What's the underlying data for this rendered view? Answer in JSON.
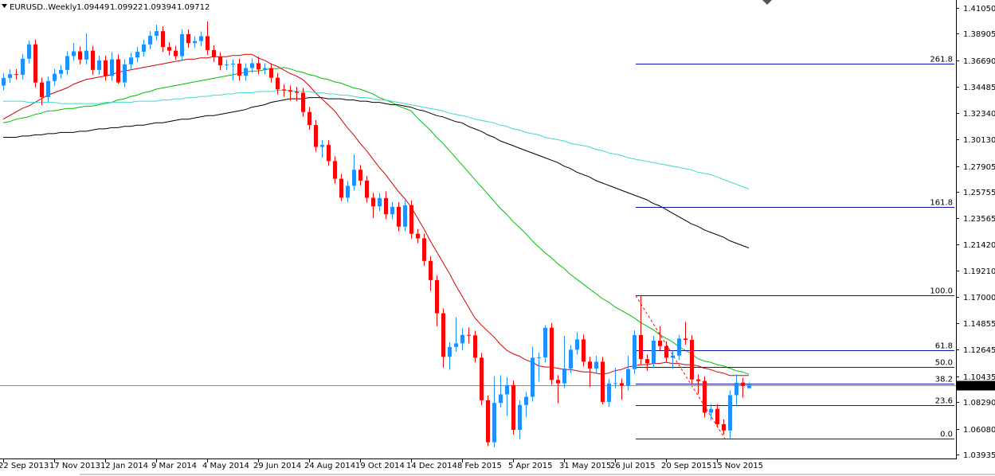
{
  "chart_data": {
    "type": "candlestick",
    "symbol": "EURUSD..Weekly",
    "categories": [
      "22 Sep 2013",
      null,
      null,
      null,
      null,
      null,
      null,
      null,
      "17 Nov 2013",
      null,
      null,
      null,
      null,
      null,
      null,
      null,
      "12 Jan 2014",
      null,
      null,
      null,
      null,
      null,
      null,
      null,
      "9 Mar 2014",
      null,
      null,
      null,
      null,
      null,
      null,
      null,
      "4 May 2014",
      null,
      null,
      null,
      null,
      null,
      null,
      null,
      "29 Jun 2014",
      null,
      null,
      null,
      null,
      null,
      null,
      null,
      "24 Aug 2014",
      null,
      null,
      null,
      null,
      null,
      null,
      null,
      "19 Oct 2014",
      null,
      null,
      null,
      null,
      null,
      null,
      null,
      "14 Dec 2014",
      null,
      null,
      null,
      null,
      null,
      null,
      null,
      "8 Feb 2015",
      null,
      null,
      null,
      null,
      null,
      null,
      null,
      "5 Apr 2015",
      null,
      null,
      null,
      null,
      null,
      null,
      null,
      "31 May 2015",
      null,
      null,
      null,
      null,
      null,
      null,
      null,
      "26 Jul 2015",
      null,
      null,
      null,
      null,
      null,
      null,
      null,
      "20 Sep 2015",
      null,
      null,
      null,
      null,
      null,
      null,
      null,
      "15 Nov 2015",
      null,
      null,
      null,
      null,
      null
    ],
    "open": [
      1.346,
      1.3523,
      1.3555,
      1.3549,
      1.3683,
      1.3802,
      1.3485,
      1.3364,
      1.3497,
      1.3558,
      1.359,
      1.3705,
      1.3744,
      1.3676,
      1.375,
      1.359,
      1.3669,
      1.354,
      1.3678,
      1.3486,
      1.3636,
      1.3693,
      1.3741,
      1.3802,
      1.3874,
      1.3912,
      1.378,
      1.375,
      1.3704,
      1.3887,
      1.3813,
      1.383,
      1.387,
      1.3755,
      1.3697,
      1.3628,
      1.3635,
      1.3642,
      1.3542,
      1.3605,
      1.3646,
      1.3594,
      1.3605,
      1.3525,
      1.3428,
      1.342,
      1.341,
      1.34,
      1.324,
      1.3132,
      1.295,
      1.2966,
      1.2832,
      1.2685,
      1.2528,
      1.2627,
      1.276,
      1.267,
      1.2527,
      1.2456,
      1.2525,
      1.239,
      1.2452,
      1.2287,
      1.2465,
      1.2228,
      1.219,
      1.2002,
      1.1843,
      1.1567,
      1.1205,
      1.1287,
      1.1317,
      1.1387,
      1.1383,
      1.1198,
      1.0844,
      1.0495,
      1.0822,
      1.0893,
      1.097,
      1.0598,
      1.0805,
      1.0873,
      1.1198,
      1.12,
      1.1447,
      1.1013,
      1.0985,
      1.1108,
      1.1264,
      1.135,
      1.1165,
      1.1108,
      1.1164,
      1.083,
      1.0983,
      1.0986,
      1.0966,
      1.1103,
      1.1386,
      1.1186,
      1.1151,
      1.1339,
      1.1295,
      1.1198,
      1.1216,
      1.1357,
      1.1346,
      1.1017,
      1.1004,
      1.0741,
      1.0771,
      1.0645,
      1.0593,
      1.0886,
      1.099,
      1.09449
    ],
    "high": [
      1.3563,
      1.3595,
      1.3595,
      1.3723,
      1.3832,
      1.3842,
      1.3525,
      1.3537,
      1.3598,
      1.363,
      1.3745,
      1.3811,
      1.3784,
      1.3893,
      1.379,
      1.3709,
      1.3709,
      1.3739,
      1.3718,
      1.3676,
      1.3733,
      1.3781,
      1.3842,
      1.3914,
      1.3967,
      1.3952,
      1.382,
      1.379,
      1.3927,
      1.3927,
      1.387,
      1.391,
      1.3993,
      1.3795,
      1.3737,
      1.3675,
      1.3677,
      1.3682,
      1.3645,
      1.3686,
      1.37,
      1.3645,
      1.3645,
      1.3565,
      1.3468,
      1.346,
      1.345,
      1.344,
      1.328,
      1.3172,
      1.3006,
      1.3006,
      1.2872,
      1.2725,
      1.2667,
      1.2887,
      1.28,
      1.271,
      1.2567,
      1.2565,
      1.258,
      1.2492,
      1.2492,
      1.2505,
      1.2505,
      1.2268,
      1.223,
      1.2042,
      1.1883,
      1.1607,
      1.1327,
      1.1534,
      1.1443,
      1.145,
      1.1423,
      1.1238,
      1.0884,
      1.1043,
      1.1052,
      1.1035,
      1.101,
      1.0845,
      1.0913,
      1.129,
      1.124,
      1.1467,
      1.1487,
      1.1053,
      1.1379,
      1.1304,
      1.141,
      1.139,
      1.1205,
      1.1215,
      1.1204,
      1.1023,
      1.1114,
      1.1026,
      1.1215,
      1.1426,
      1.1714,
      1.1226,
      1.1379,
      1.1461,
      1.1335,
      1.1256,
      1.1386,
      1.1495,
      1.1386,
      1.1057,
      1.1044,
      1.0811,
      1.0811,
      1.0685,
      1.0926,
      1.106,
      1.103,
      1.09922
    ],
    "low": [
      1.342,
      1.3483,
      1.3509,
      1.3509,
      1.3643,
      1.3445,
      1.3296,
      1.3324,
      1.3457,
      1.3518,
      1.355,
      1.3665,
      1.3636,
      1.3636,
      1.355,
      1.355,
      1.35,
      1.35,
      1.3476,
      1.3446,
      1.3596,
      1.3653,
      1.3701,
      1.3762,
      1.3834,
      1.374,
      1.371,
      1.3674,
      1.3664,
      1.3773,
      1.3773,
      1.379,
      1.3715,
      1.3657,
      1.3588,
      1.3588,
      1.3503,
      1.3502,
      1.3502,
      1.3565,
      1.3554,
      1.3554,
      1.3485,
      1.3388,
      1.3367,
      1.3333,
      1.333,
      1.32,
      1.3092,
      1.291,
      1.286,
      1.2792,
      1.2645,
      1.25,
      1.2488,
      1.2587,
      1.263,
      1.2487,
      1.2357,
      1.2416,
      1.235,
      1.235,
      1.2247,
      1.2247,
      1.2188,
      1.215,
      1.1962,
      1.1753,
      1.146,
      1.1115,
      1.1098,
      1.1247,
      1.126,
      1.1316,
      1.1158,
      1.0804,
      1.0462,
      1.0455,
      1.0782,
      1.0712,
      1.0558,
      1.0521,
      1.0705,
      1.0833,
      1.1,
      1.116,
      1.0973,
      1.0819,
      1.0945,
      1.1068,
      1.1224,
      1.1125,
      1.0955,
      1.1068,
      1.0809,
      1.079,
      1.0943,
      1.0847,
      1.0926,
      1.1063,
      1.1146,
      1.1087,
      1.1111,
      1.1255,
      1.1158,
      1.1105,
      1.1176,
      1.1306,
      1.0977,
      1.0897,
      1.0701,
      1.0674,
      1.0617,
      1.0558,
      1.0524,
      1.0795,
      1.0867,
      1.09394
    ],
    "close": [
      1.3523,
      1.3555,
      1.3549,
      1.3683,
      1.3802,
      1.3485,
      1.3364,
      1.3497,
      1.3558,
      1.359,
      1.3705,
      1.3744,
      1.3676,
      1.375,
      1.359,
      1.3669,
      1.354,
      1.3678,
      1.3486,
      1.3636,
      1.3693,
      1.3741,
      1.3802,
      1.3874,
      1.3912,
      1.378,
      1.375,
      1.3704,
      1.3887,
      1.3813,
      1.383,
      1.387,
      1.3755,
      1.3697,
      1.3628,
      1.3635,
      1.3642,
      1.3542,
      1.3605,
      1.3646,
      1.3594,
      1.3605,
      1.3525,
      1.3428,
      1.342,
      1.341,
      1.34,
      1.324,
      1.3132,
      1.295,
      1.2966,
      1.2832,
      1.2685,
      1.2528,
      1.2627,
      1.276,
      1.267,
      1.2527,
      1.2456,
      1.2525,
      1.239,
      1.2452,
      1.2287,
      1.2465,
      1.2228,
      1.219,
      1.2002,
      1.1843,
      1.1567,
      1.1205,
      1.1287,
      1.1317,
      1.1387,
      1.1383,
      1.1198,
      1.0844,
      1.0495,
      1.0822,
      1.0893,
      1.097,
      1.0598,
      1.0805,
      1.0873,
      1.1198,
      1.12,
      1.1447,
      1.1013,
      1.0985,
      1.1108,
      1.1264,
      1.135,
      1.1165,
      1.1108,
      1.1164,
      1.083,
      1.0983,
      1.0986,
      1.0966,
      1.1103,
      1.1386,
      1.1186,
      1.1151,
      1.1339,
      1.1295,
      1.1198,
      1.1216,
      1.1357,
      1.1346,
      1.1017,
      1.1004,
      1.0741,
      1.0771,
      1.0645,
      1.0593,
      1.0886,
      1.099,
      1.0964,
      1.09712
    ],
    "up_color": "#1e90ff",
    "down_color": "#ff0000",
    "lines": [
      {
        "color": "#d40000",
        "values": [
          1.318,
          1.321,
          1.324,
          1.327,
          1.329,
          1.332,
          1.335,
          1.338,
          1.34,
          1.342,
          1.344,
          1.347,
          1.349,
          1.351,
          1.352,
          1.353,
          1.354,
          1.355,
          1.357,
          1.358,
          1.359,
          1.36,
          1.361,
          1.362,
          1.363,
          1.364,
          1.365,
          1.366,
          1.367,
          1.368,
          1.368,
          1.369,
          1.369,
          1.37,
          1.37,
          1.37,
          1.371,
          1.371,
          1.372,
          1.372,
          1.369,
          1.367,
          1.364,
          1.362,
          1.359,
          1.356,
          1.354,
          1.351,
          1.346,
          1.34,
          1.335,
          1.33,
          1.325,
          1.318,
          1.311,
          1.305,
          1.298,
          1.292,
          1.285,
          1.278,
          1.272,
          1.265,
          1.258,
          1.252,
          1.245,
          1.236,
          1.227,
          1.217,
          1.208,
          1.199,
          1.19,
          1.18,
          1.171,
          1.162,
          1.153,
          1.147,
          1.142,
          1.137,
          1.131,
          1.126,
          1.123,
          1.121,
          1.118,
          1.116,
          1.113,
          1.112,
          1.112,
          1.111,
          1.11,
          1.11,
          1.109,
          1.108,
          1.108,
          1.107,
          1.106,
          1.107,
          1.109,
          1.11,
          1.112,
          1.113,
          1.114,
          1.114,
          1.115,
          1.115,
          1.116,
          1.115,
          1.115,
          1.114,
          1.114,
          1.113,
          1.111,
          1.11,
          1.108,
          1.107,
          1.105,
          1.105,
          1.105,
          1.105
        ]
      },
      {
        "color": "#00c000",
        "values": [
          1.315,
          1.316,
          1.318,
          1.319,
          1.32,
          1.322,
          1.323,
          1.325,
          1.325,
          1.326,
          1.327,
          1.327,
          1.328,
          1.329,
          1.329,
          1.33,
          1.331,
          1.332,
          1.334,
          1.335,
          1.337,
          1.338,
          1.34,
          1.341,
          1.343,
          1.344,
          1.345,
          1.346,
          1.347,
          1.348,
          1.349,
          1.35,
          1.351,
          1.352,
          1.353,
          1.354,
          1.355,
          1.356,
          1.357,
          1.358,
          1.358,
          1.359,
          1.36,
          1.36,
          1.361,
          1.36,
          1.358,
          1.357,
          1.355,
          1.354,
          1.352,
          1.351,
          1.349,
          1.348,
          1.346,
          1.344,
          1.343,
          1.341,
          1.339,
          1.336,
          1.334,
          1.332,
          1.329,
          1.327,
          1.325,
          1.319,
          1.314,
          1.309,
          1.303,
          1.298,
          1.292,
          1.286,
          1.28,
          1.274,
          1.268,
          1.262,
          1.256,
          1.25,
          1.244,
          1.239,
          1.233,
          1.228,
          1.223,
          1.217,
          1.212,
          1.207,
          1.203,
          1.198,
          1.194,
          1.189,
          1.185,
          1.181,
          1.177,
          1.173,
          1.169,
          1.166,
          1.162,
          1.159,
          1.156,
          1.153,
          1.149,
          1.146,
          1.143,
          1.139,
          1.136,
          1.133,
          1.129,
          1.126,
          1.123,
          1.119,
          1.117,
          1.116,
          1.114,
          1.113,
          1.111,
          1.109,
          1.108,
          1.106
        ]
      },
      {
        "color": "#40d8d0",
        "values": [
          1.333,
          1.333,
          1.333,
          1.333,
          1.332,
          1.332,
          1.332,
          1.332,
          1.332,
          1.331,
          1.331,
          1.331,
          1.331,
          1.331,
          1.331,
          1.331,
          1.332,
          1.332,
          1.332,
          1.332,
          1.332,
          1.333,
          1.333,
          1.333,
          1.333,
          1.334,
          1.334,
          1.335,
          1.335,
          1.336,
          1.336,
          1.337,
          1.337,
          1.338,
          1.338,
          1.339,
          1.339,
          1.34,
          1.34,
          1.34,
          1.341,
          1.341,
          1.341,
          1.342,
          1.342,
          1.342,
          1.341,
          1.341,
          1.341,
          1.34,
          1.34,
          1.339,
          1.339,
          1.338,
          1.338,
          1.337,
          1.336,
          1.336,
          1.335,
          1.334,
          1.334,
          1.333,
          1.332,
          1.331,
          1.33,
          1.329,
          1.328,
          1.327,
          1.326,
          1.325,
          1.323,
          1.322,
          1.321,
          1.32,
          1.318,
          1.317,
          1.316,
          1.315,
          1.313,
          1.312,
          1.31,
          1.309,
          1.307,
          1.306,
          1.305,
          1.303,
          1.302,
          1.301,
          1.3,
          1.298,
          1.297,
          1.296,
          1.295,
          1.293,
          1.292,
          1.29,
          1.289,
          1.288,
          1.286,
          1.285,
          1.284,
          1.283,
          1.282,
          1.281,
          1.28,
          1.279,
          1.278,
          1.277,
          1.276,
          1.274,
          1.273,
          1.272,
          1.27,
          1.268,
          1.266,
          1.264,
          1.262,
          1.26
        ]
      },
      {
        "color": "#000000",
        "values": [
          1.303,
          1.303,
          1.303,
          1.304,
          1.304,
          1.305,
          1.305,
          1.306,
          1.306,
          1.307,
          1.307,
          1.307,
          1.308,
          1.308,
          1.309,
          1.31,
          1.31,
          1.311,
          1.311,
          1.312,
          1.312,
          1.313,
          1.313,
          1.314,
          1.315,
          1.315,
          1.316,
          1.317,
          1.318,
          1.318,
          1.319,
          1.32,
          1.321,
          1.321,
          1.322,
          1.323,
          1.324,
          1.325,
          1.326,
          1.328,
          1.329,
          1.33,
          1.332,
          1.333,
          1.334,
          1.335,
          1.335,
          1.335,
          1.336,
          1.336,
          1.336,
          1.335,
          1.335,
          1.335,
          1.334,
          1.334,
          1.333,
          1.333,
          1.332,
          1.332,
          1.331,
          1.33,
          1.33,
          1.329,
          1.328,
          1.326,
          1.325,
          1.323,
          1.321,
          1.32,
          1.318,
          1.316,
          1.315,
          1.312,
          1.31,
          1.308,
          1.305,
          1.303,
          1.3,
          1.298,
          1.296,
          1.294,
          1.292,
          1.29,
          1.288,
          1.286,
          1.284,
          1.282,
          1.279,
          1.277,
          1.274,
          1.272,
          1.27,
          1.267,
          1.265,
          1.263,
          1.261,
          1.259,
          1.257,
          1.255,
          1.253,
          1.251,
          1.248,
          1.246,
          1.243,
          1.24,
          1.237,
          1.234,
          1.231,
          1.229,
          1.226,
          1.224,
          1.222,
          1.22,
          1.217,
          1.215,
          1.213,
          1.211
        ]
      }
    ],
    "ylim": [
      1.036,
      1.4171
    ],
    "yticks": [
      {
        "value": 1.4105,
        "label": "1.41050"
      },
      1.38905,
      {
        "value": 1.3669,
        "label": "1.36690"
      },
      1.34485,
      {
        "value": 1.3234,
        "label": "1.32340"
      },
      {
        "value": 1.3013,
        "label": "1.30130"
      },
      1.27905,
      1.25755,
      1.23565,
      {
        "value": 1.2142,
        "label": "1.21420"
      },
      {
        "value": 1.1921,
        "label": "1.19210"
      },
      {
        "value": 1.17,
        "label": "1.17000"
      },
      1.14855,
      1.12645,
      1.10435,
      {
        "value": 1.0829,
        "label": "1.08290"
      },
      {
        "value": 1.0608,
        "label": "1.06080"
      },
      1.03935
    ],
    "fibo": {
      "color": "#1010b0",
      "levels": [
        261.8,
        161.8,
        {
          "value": 100,
          "label": "100.0"
        },
        61.8,
        {
          "value": 50,
          "label": "50.0"
        },
        38.2,
        23.6,
        {
          "value": 0,
          "label": "0.0"
        }
      ],
      "prices": [
        1.3639,
        1.2449,
        1.1714,
        1.1259,
        1.1119,
        1.0979,
        1.0805,
        1.0524
      ]
    },
    "price_line_color": "#8c8c8c"
  }
}
